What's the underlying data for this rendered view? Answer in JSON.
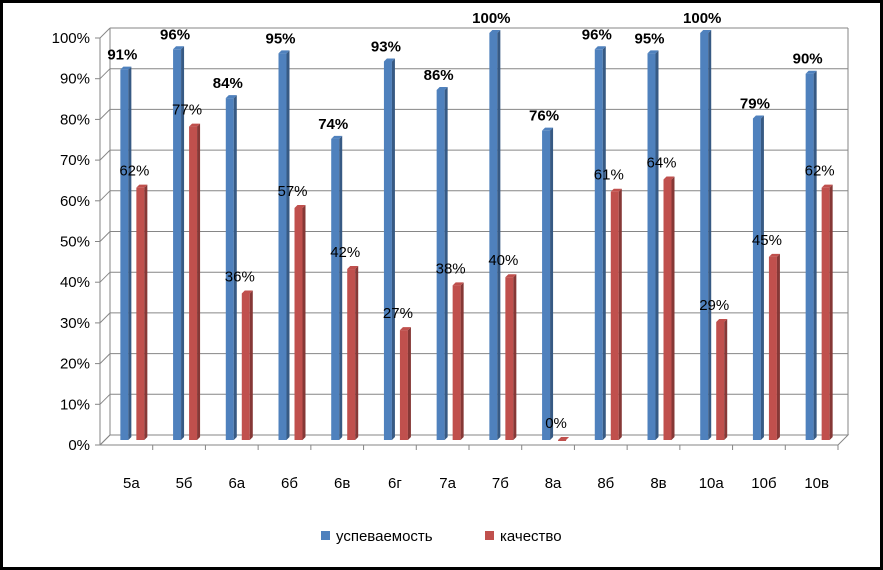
{
  "chart_data": {
    "type": "bar",
    "categories": [
      "5а",
      "5б",
      "6а",
      "6б",
      "6в",
      "6г",
      "7а",
      "7б",
      "8а",
      "8б",
      "8в",
      "10а",
      "10б",
      "10в"
    ],
    "series": [
      {
        "name": "успеваемость",
        "color": "#4f81bd",
        "values": [
          91,
          96,
          84,
          95,
          74,
          93,
          86,
          100,
          76,
          96,
          95,
          100,
          79,
          90
        ],
        "labels": [
          "91%",
          "96%",
          "84%",
          "95%",
          "74%",
          "93%",
          "86%",
          "100%",
          "76%",
          "96%",
          "95%",
          "100%",
          "79%",
          "90%"
        ]
      },
      {
        "name": "качество",
        "color": "#c0504d",
        "values": [
          62,
          77,
          36,
          57,
          42,
          27,
          38,
          40,
          0,
          61,
          64,
          29,
          45,
          62
        ],
        "labels": [
          "62%",
          "77%",
          "36%",
          "57%",
          "42%",
          "27%",
          "38%",
          "40%",
          "0%",
          "61%",
          "64%",
          "29%",
          "45%",
          "62%"
        ]
      }
    ],
    "y_ticks": [
      "0%",
      "10%",
      "20%",
      "30%",
      "40%",
      "50%",
      "60%",
      "70%",
      "80%",
      "90%",
      "100%"
    ],
    "ylim": [
      0,
      100
    ],
    "grid": true,
    "legend_position": "bottom"
  }
}
